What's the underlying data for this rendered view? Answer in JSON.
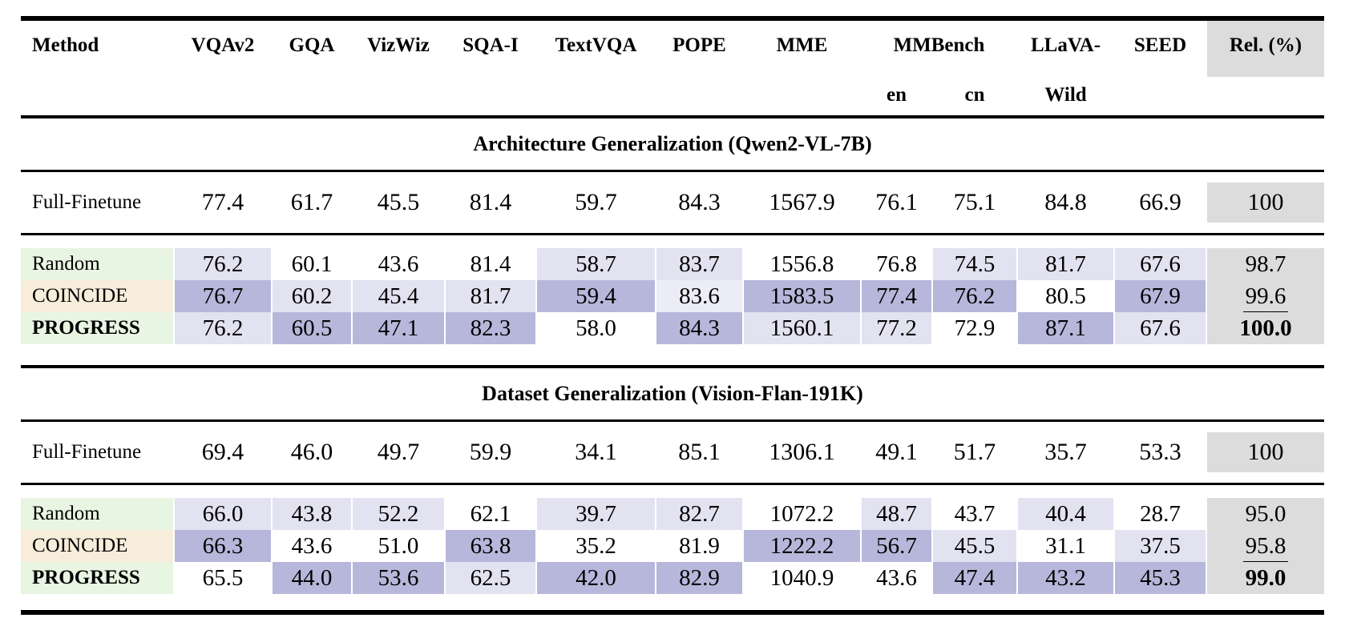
{
  "colors": {
    "shade_high": "#b7b7db",
    "shade_mid": "#e2e2f1",
    "shade_low": "#ececf7",
    "rel_gray": "#dcdcdc",
    "method_green": "#e8f5e2",
    "method_tan": "#f8ecdb",
    "rule_black": "#000000"
  },
  "header": {
    "method": "Method",
    "benchmarks": [
      "VQAv2",
      "GQA",
      "VizWiz",
      "SQA-I",
      "TextVQA",
      "POPE",
      "MME"
    ],
    "mmbench_label": "MMBench",
    "mmbench_en": "en",
    "mmbench_cn": "cn",
    "llava_line1": "LLaVA-",
    "llava_line2": "Wild",
    "seed": "SEED",
    "rel": "Rel. (%)"
  },
  "sections": [
    {
      "title": "Architecture Generalization (Qwen2-VL-7B)",
      "baseline": {
        "method": "Full-Finetune",
        "values": [
          "77.4",
          "61.7",
          "45.5",
          "81.4",
          "59.7",
          "84.3",
          "1567.9",
          "76.1",
          "75.1",
          "84.8",
          "66.9"
        ],
        "rel": "100"
      },
      "rows": [
        {
          "method": "Random",
          "tone": "green",
          "emphasis": "normal",
          "values": [
            "76.2",
            "60.1",
            "43.6",
            "81.4",
            "58.7",
            "83.7",
            "1556.8",
            "76.8",
            "74.5",
            "81.7",
            "67.6"
          ],
          "shades": [
            2,
            0,
            0,
            0,
            2,
            2,
            0,
            0,
            2,
            2,
            2
          ],
          "rel": {
            "value": "98.7",
            "style": "plain"
          }
        },
        {
          "method": "COINCIDE",
          "tone": "tan",
          "emphasis": "normal",
          "values": [
            "76.7",
            "60.2",
            "45.4",
            "81.7",
            "59.4",
            "83.6",
            "1583.5",
            "77.4",
            "76.2",
            "80.5",
            "67.9"
          ],
          "shades": [
            3,
            2,
            2,
            2,
            3,
            1,
            3,
            3,
            3,
            0,
            3
          ],
          "rel": {
            "value": "99.6",
            "style": "underline"
          }
        },
        {
          "method": "PROGRESS",
          "tone": "green",
          "emphasis": "bold",
          "values": [
            "76.2",
            "60.5",
            "47.1",
            "82.3",
            "58.0",
            "84.3",
            "1560.1",
            "77.2",
            "72.9",
            "87.1",
            "67.6"
          ],
          "shades": [
            2,
            3,
            3,
            3,
            0,
            3,
            2,
            2,
            0,
            3,
            2
          ],
          "rel": {
            "value": "100.0",
            "style": "bold"
          }
        }
      ]
    },
    {
      "title": "Dataset Generalization (Vision-Flan-191K)",
      "baseline": {
        "method": "Full-Finetune",
        "values": [
          "69.4",
          "46.0",
          "49.7",
          "59.9",
          "34.1",
          "85.1",
          "1306.1",
          "49.1",
          "51.7",
          "35.7",
          "53.3"
        ],
        "rel": "100"
      },
      "rows": [
        {
          "method": "Random",
          "tone": "green",
          "emphasis": "normal",
          "values": [
            "66.0",
            "43.8",
            "52.2",
            "62.1",
            "39.7",
            "82.7",
            "1072.2",
            "48.7",
            "43.7",
            "40.4",
            "28.7"
          ],
          "shades": [
            2,
            2,
            2,
            0,
            2,
            2,
            0,
            2,
            0,
            2,
            0
          ],
          "rel": {
            "value": "95.0",
            "style": "plain"
          }
        },
        {
          "method": "COINCIDE",
          "tone": "tan",
          "emphasis": "normal",
          "values": [
            "66.3",
            "43.6",
            "51.0",
            "63.8",
            "35.2",
            "81.9",
            "1222.2",
            "56.7",
            "45.5",
            "31.1",
            "37.5"
          ],
          "shades": [
            3,
            0,
            0,
            3,
            0,
            0,
            3,
            3,
            2,
            0,
            2
          ],
          "rel": {
            "value": "95.8",
            "style": "underline"
          }
        },
        {
          "method": "PROGRESS",
          "tone": "green",
          "emphasis": "bold",
          "values": [
            "65.5",
            "44.0",
            "53.6",
            "62.5",
            "42.0",
            "82.9",
            "1040.9",
            "43.6",
            "47.4",
            "43.2",
            "45.3"
          ],
          "shades": [
            0,
            3,
            3,
            2,
            3,
            3,
            0,
            0,
            3,
            3,
            3
          ],
          "rel": {
            "value": "99.0",
            "style": "bold"
          }
        }
      ]
    }
  ]
}
